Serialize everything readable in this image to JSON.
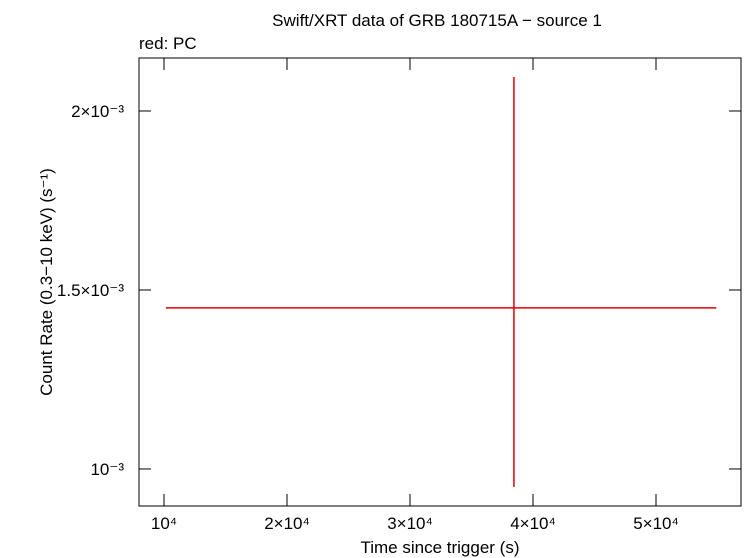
{
  "chart_data": {
    "type": "errorbar",
    "title": "Swift/XRT data of GRB 180715A − source 1",
    "annotation": "red: PC",
    "x_label": "Time since trigger (s)",
    "y_label": "Count Rate (0.3−10 keV) (s⁻¹)",
    "xlim": [
      7967,
      56911
    ],
    "ylim": [
      0.0008966,
      0.002148
    ],
    "xticks": [
      {
        "value": 10000,
        "label": "10⁴"
      },
      {
        "value": 20000,
        "label": "2×10⁴"
      },
      {
        "value": 30000,
        "label": "3×10⁴"
      },
      {
        "value": 40000,
        "label": "4×10⁴"
      },
      {
        "value": 50000,
        "label": "5×10⁴"
      }
    ],
    "yticks": [
      {
        "value": 0.001,
        "label": "10⁻³"
      },
      {
        "value": 0.0015,
        "label": "1.5×10⁻³"
      },
      {
        "value": 0.002,
        "label": "2×10⁻³"
      }
    ],
    "series": [
      {
        "name": "PC",
        "color": "#e00000",
        "x": [
          38450
        ],
        "x_low": [
          10150
        ],
        "x_high": [
          54900
        ],
        "y": [
          0.00145
        ],
        "y_low": [
          0.00095
        ],
        "y_high": [
          0.002095
        ]
      }
    ]
  }
}
